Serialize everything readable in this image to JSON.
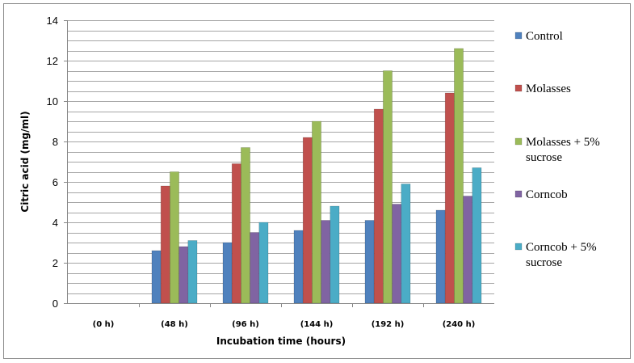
{
  "chart_data": {
    "type": "bar",
    "title": "",
    "xlabel": "Incubation time (hours)",
    "ylabel": "Citric acid (mg/ml)",
    "ylim": [
      0,
      14
    ],
    "yticks": [
      0,
      2,
      4,
      6,
      8,
      10,
      12,
      14
    ],
    "grid": true,
    "legend_position": "right",
    "categories": [
      "(0 h)",
      "(48 h)",
      "(96 h)",
      "(144 h)",
      "(192 h)",
      "(240 h)"
    ],
    "series": [
      {
        "name": "Control",
        "color": "#4F81BD",
        "values": [
          0,
          2.6,
          3.0,
          3.6,
          4.1,
          4.6
        ]
      },
      {
        "name": "Molasses",
        "color": "#C0504D",
        "values": [
          0,
          5.8,
          6.9,
          8.2,
          9.6,
          10.4
        ]
      },
      {
        "name": "Molasses + 5% sucrose",
        "color": "#9BBB59",
        "values": [
          0,
          6.5,
          7.7,
          9.0,
          11.5,
          12.6
        ]
      },
      {
        "name": "Corncob",
        "color": "#8064A2",
        "values": [
          0,
          2.8,
          3.5,
          4.1,
          4.9,
          5.3
        ]
      },
      {
        "name": "Corncob + 5% sucrose",
        "color": "#4BACC6",
        "values": [
          0,
          3.1,
          4.0,
          4.8,
          5.9,
          6.7
        ]
      }
    ],
    "legend_lines": [
      [
        "Control"
      ],
      [
        "Molasses"
      ],
      [
        "Molasses + 5%",
        "sucrose"
      ],
      [
        "Corncob"
      ],
      [
        "Corncob + 5%",
        "sucrose"
      ]
    ]
  }
}
